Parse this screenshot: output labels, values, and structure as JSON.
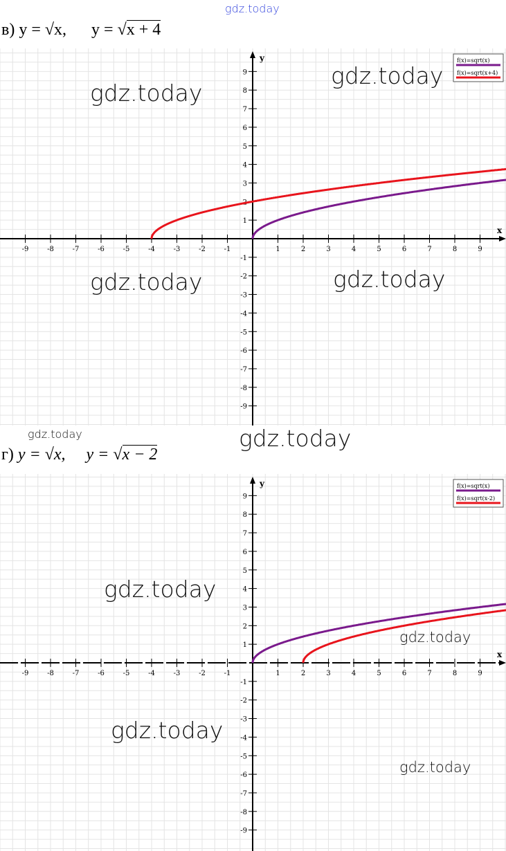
{
  "watermarks": {
    "text": "gdz.today"
  },
  "chart_data": [
    {
      "type": "line",
      "heading": "в) y = √x,      y = √x + 4",
      "heading_parts": {
        "letter": "в)",
        "f1": "y = √x,",
        "f2_prefix": "y = √",
        "f2_radicand": "x + 4"
      },
      "xlabel": "x",
      "ylabel": "y",
      "xlim": [
        -10,
        10
      ],
      "ylim": [
        -10,
        10
      ],
      "xticks": [
        -9,
        -8,
        -7,
        -6,
        -5,
        -4,
        -3,
        -2,
        -1,
        1,
        2,
        3,
        4,
        5,
        6,
        7,
        8,
        9
      ],
      "yticks": [
        -9,
        -8,
        -7,
        -6,
        -5,
        -4,
        -3,
        -2,
        -1,
        1,
        2,
        3,
        4,
        5,
        6,
        7,
        8,
        9
      ],
      "grid": true,
      "legend": "top-right",
      "series": [
        {
          "name": "f(x)=sqrt(x)",
          "expr": "sqrt(x)",
          "shift": 0,
          "domain_start": 0,
          "color": "#7a1a8c"
        },
        {
          "name": "f(x)=sqrt(x+4)",
          "expr": "sqrt(x+4)",
          "shift": -4,
          "domain_start": -4,
          "color": "#e8141c"
        }
      ]
    },
    {
      "type": "line",
      "heading_parts": {
        "letter": "г)",
        "f1": "y = √x,",
        "f2_prefix": "y = √",
        "f2_radicand": "x − 2"
      },
      "xlabel": "x",
      "ylabel": "y",
      "xlim": [
        -10,
        10
      ],
      "ylim": [
        -10,
        10
      ],
      "xticks": [
        -9,
        -8,
        -7,
        -6,
        -5,
        -4,
        -3,
        -2,
        -1,
        1,
        2,
        3,
        4,
        5,
        6,
        7,
        8,
        9
      ],
      "yticks": [
        -9,
        -8,
        -7,
        -6,
        -5,
        -4,
        -3,
        -2,
        -1,
        1,
        2,
        3,
        4,
        5,
        6,
        7,
        8,
        9
      ],
      "grid": true,
      "legend": "top-right",
      "series": [
        {
          "name": "f(x)=sqrt(x)",
          "expr": "sqrt(x)",
          "shift": 0,
          "domain_start": 0,
          "color": "#7a1a8c"
        },
        {
          "name": "f(x)=sqrt(x-2)",
          "expr": "sqrt(x-2)",
          "shift": 2,
          "domain_start": 2,
          "color": "#e8141c"
        }
      ]
    }
  ]
}
